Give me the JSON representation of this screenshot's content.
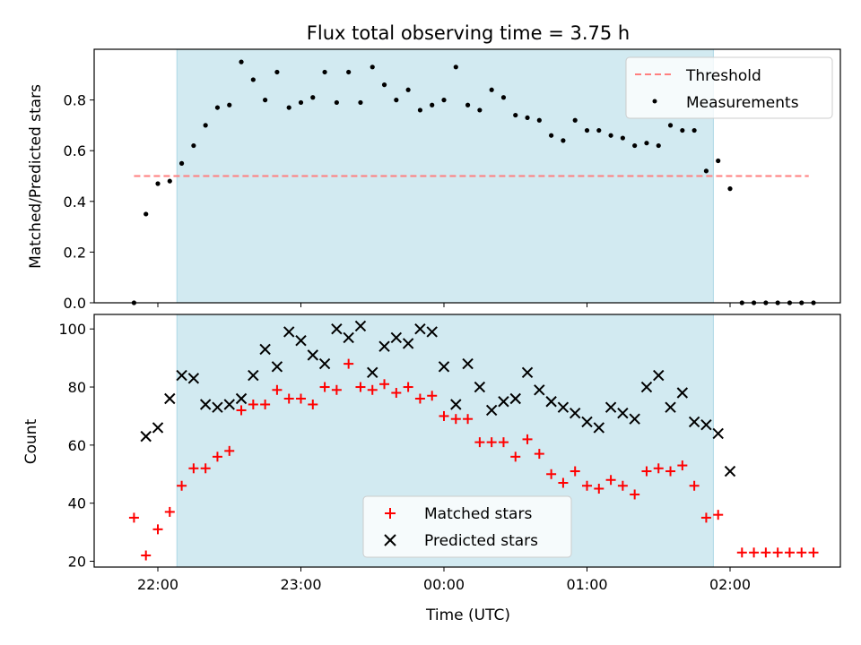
{
  "chart_data": [
    {
      "type": "scatter",
      "title": "Flux total observing time = 3.75 h",
      "xlabel": "",
      "ylabel": "Matched/Predicted stars",
      "ylim": [
        0,
        1.0
      ],
      "yticks": [
        "0.0",
        "0.2",
        "0.4",
        "0.6",
        "0.8"
      ],
      "shaded_span": {
        "x": [
          "22:08",
          "01:53"
        ],
        "color": "#add8e6"
      },
      "threshold": {
        "name": "Threshold",
        "value": 0.5,
        "x": [
          "21:50",
          "02:33"
        ],
        "color": "#ff7f7f"
      },
      "legend": "top-right",
      "series": [
        {
          "name": "Measurements",
          "marker": "dot",
          "color": "#000000",
          "x": [
            "21:50",
            "21:55",
            "22:00",
            "22:05",
            "22:10",
            "22:15",
            "22:20",
            "22:25",
            "22:30",
            "22:35",
            "22:40",
            "22:45",
            "22:50",
            "22:55",
            "23:00",
            "23:05",
            "23:10",
            "23:15",
            "23:20",
            "23:25",
            "23:30",
            "23:35",
            "23:40",
            "23:45",
            "23:50",
            "23:55",
            "00:00",
            "00:05",
            "00:10",
            "00:15",
            "00:20",
            "00:25",
            "00:30",
            "00:35",
            "00:40",
            "00:45",
            "00:50",
            "00:55",
            "01:00",
            "01:05",
            "01:10",
            "01:15",
            "01:20",
            "01:25",
            "01:30",
            "01:35",
            "01:40",
            "01:45",
            "01:50",
            "01:55",
            "02:00",
            "02:05",
            "02:10",
            "02:15",
            "02:20",
            "02:25",
            "02:30",
            "02:35"
          ],
          "values": [
            0.0,
            0.35,
            0.47,
            0.48,
            0.55,
            0.62,
            0.7,
            0.77,
            0.78,
            0.95,
            0.88,
            0.8,
            0.91,
            0.77,
            0.79,
            0.81,
            0.91,
            0.79,
            0.91,
            0.79,
            0.93,
            0.86,
            0.8,
            0.84,
            0.76,
            0.78,
            0.8,
            0.93,
            0.78,
            0.76,
            0.84,
            0.81,
            0.74,
            0.73,
            0.72,
            0.66,
            0.64,
            0.72,
            0.68,
            0.68,
            0.66,
            0.65,
            0.62,
            0.63,
            0.62,
            0.7,
            0.68,
            0.68,
            0.52,
            0.56,
            0.45,
            0.0,
            0.0,
            0.0,
            0.0,
            0.0,
            0.0,
            0.0
          ]
        }
      ]
    },
    {
      "type": "scatter",
      "title": "",
      "xlabel": "Time (UTC)",
      "ylabel": "Count",
      "ylim": [
        18,
        105
      ],
      "yticks": [
        "20",
        "40",
        "60",
        "80",
        "100"
      ],
      "xticks": [
        "22:00",
        "23:00",
        "00:00",
        "01:00",
        "02:00"
      ],
      "shaded_span": {
        "x": [
          "22:08",
          "01:53"
        ],
        "color": "#add8e6"
      },
      "legend": "bottom-center",
      "series": [
        {
          "name": "Matched stars",
          "marker": "plus",
          "color": "#ff0000",
          "x": [
            "21:50",
            "21:55",
            "22:00",
            "22:05",
            "22:10",
            "22:15",
            "22:20",
            "22:25",
            "22:30",
            "22:35",
            "22:40",
            "22:45",
            "22:50",
            "22:55",
            "23:00",
            "23:05",
            "23:10",
            "23:15",
            "23:20",
            "23:25",
            "23:30",
            "23:35",
            "23:40",
            "23:45",
            "23:50",
            "23:55",
            "00:00",
            "00:05",
            "00:10",
            "00:15",
            "00:20",
            "00:25",
            "00:30",
            "00:35",
            "00:40",
            "00:45",
            "00:50",
            "00:55",
            "01:00",
            "01:05",
            "01:10",
            "01:15",
            "01:20",
            "01:25",
            "01:30",
            "01:35",
            "01:40",
            "01:45",
            "01:50",
            "01:55",
            "02:00",
            "02:05",
            "02:10",
            "02:15",
            "02:20",
            "02:25",
            "02:30",
            "02:35"
          ],
          "values": [
            35,
            22,
            31,
            37,
            46,
            52,
            52,
            56,
            58,
            72,
            74,
            74,
            79,
            76,
            76,
            74,
            80,
            79,
            88,
            80,
            79,
            81,
            78,
            80,
            76,
            77,
            70,
            69,
            69,
            61,
            61,
            61,
            56,
            62,
            57,
            50,
            47,
            51,
            46,
            45,
            48,
            46,
            43,
            51,
            52,
            51,
            53,
            46,
            35,
            36,
            null,
            23,
            23,
            23,
            23,
            23,
            23,
            23
          ]
        },
        {
          "name": "Predicted stars",
          "marker": "x",
          "color": "#000000",
          "x": [
            "21:55",
            "22:00",
            "22:05",
            "22:10",
            "22:15",
            "22:20",
            "22:25",
            "22:30",
            "22:35",
            "22:40",
            "22:45",
            "22:50",
            "22:55",
            "23:00",
            "23:05",
            "23:10",
            "23:15",
            "23:20",
            "23:25",
            "23:30",
            "23:35",
            "23:40",
            "23:45",
            "23:50",
            "23:55",
            "00:00",
            "00:05",
            "00:10",
            "00:15",
            "00:20",
            "00:25",
            "00:30",
            "00:35",
            "00:40",
            "00:45",
            "00:50",
            "00:55",
            "01:00",
            "01:05",
            "01:10",
            "01:15",
            "01:20",
            "01:25",
            "01:30",
            "01:35",
            "01:40",
            "01:45",
            "01:50",
            "01:55",
            "02:00"
          ],
          "values": [
            63,
            66,
            76,
            84,
            83,
            74,
            73,
            74,
            76,
            84,
            93,
            87,
            99,
            96,
            91,
            88,
            100,
            97,
            101,
            85,
            94,
            97,
            95,
            100,
            99,
            87,
            74,
            88,
            80,
            72,
            75,
            76,
            85,
            79,
            75,
            73,
            71,
            68,
            66,
            73,
            71,
            69,
            80,
            84,
            73,
            78,
            68,
            67,
            64,
            51
          ]
        }
      ]
    }
  ]
}
